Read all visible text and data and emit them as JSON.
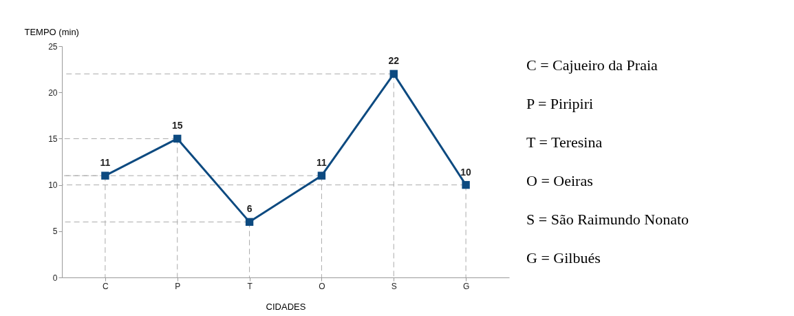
{
  "chart_data": {
    "type": "line",
    "xlabel": "CIDADES",
    "ylabel": "TEMPO (min)",
    "categories": [
      "C",
      "P",
      "T",
      "O",
      "S",
      "G"
    ],
    "series": [
      {
        "color": "#0d4a80",
        "values": [
          11,
          15,
          6,
          11,
          22,
          10
        ]
      }
    ],
    "ylim": [
      0,
      25
    ],
    "yticks": [
      0,
      5,
      10,
      15,
      20,
      25
    ],
    "marker": "square",
    "line_style": "solid",
    "data_labels": true,
    "annotations": [
      "C = Cajueiro da Praia",
      "P = Piripiri",
      "T = Teresina",
      "O = Oeiras",
      "S = São Raimundo Nonato",
      "G = Gilbués"
    ]
  }
}
